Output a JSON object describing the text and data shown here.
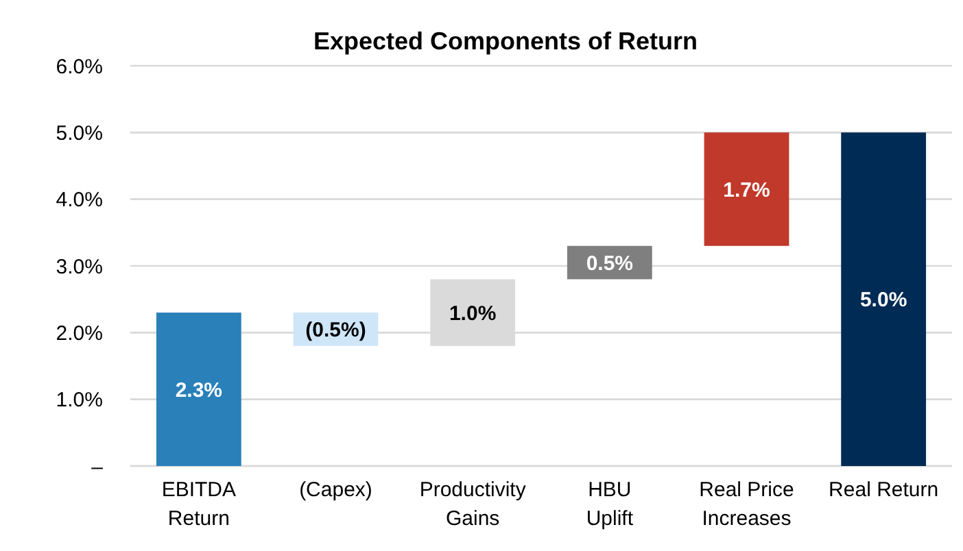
{
  "chart_data": {
    "type": "bar",
    "title": "Expected Components of Return",
    "categories": [
      "EBITDA\nReturn",
      "(Capex)",
      "Productivity\nGains",
      "HBU\nUplift",
      "Real Price\nIncreases",
      "Real Return"
    ],
    "values": [
      2.3,
      -0.5,
      1.0,
      0.5,
      1.7,
      5.0
    ],
    "base": [
      0,
      2.3,
      1.8,
      2.8,
      3.3,
      0
    ],
    "colors": [
      "#2a80b9",
      "#cfe6f9",
      "#dadada",
      "#7f7f7f",
      "#c0392b",
      "#002b55"
    ],
    "value_labels": [
      "2.3%",
      "(0.5%)",
      "1.0%",
      "0.5%",
      "1.7%",
      "5.0%"
    ],
    "ylim": [
      0,
      6
    ],
    "yticks": [
      {
        "value": 0,
        "label": "–"
      },
      {
        "value": 1,
        "label": "1.0%"
      },
      {
        "value": 2,
        "label": "2.0%"
      },
      {
        "value": 3,
        "label": "3.0%"
      },
      {
        "value": 4,
        "label": "4.0%"
      },
      {
        "value": 5,
        "label": "5.0%"
      },
      {
        "value": 6,
        "label": "6.0%"
      }
    ],
    "grid": "y"
  }
}
